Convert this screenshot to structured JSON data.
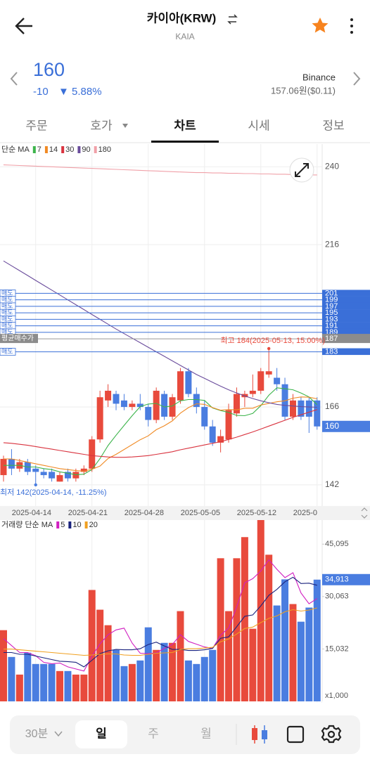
{
  "header": {
    "title": "카이아(KRW)",
    "subtitle": "KAIA"
  },
  "quote": {
    "price": "160",
    "change": "-10",
    "change_rate": "▼ 5.88%",
    "exchange": "Binance",
    "exchange_price": "157.06원($0.11)"
  },
  "tabs": [
    "주문",
    "호가",
    "차트",
    "시세",
    "정보"
  ],
  "toolbar": {
    "interval": "30분",
    "periods": [
      "일",
      "주",
      "월"
    ]
  },
  "chart_data": [
    {
      "type": "candlestick",
      "legend_label": "단순 MA",
      "categories": [
        null,
        null,
        null,
        null,
        "2025-04-14",
        null,
        null,
        null,
        null,
        null,
        null,
        "2025-04-21",
        null,
        null,
        null,
        null,
        null,
        null,
        "2025-04-28",
        null,
        null,
        null,
        null,
        null,
        null,
        "2025-05-05",
        null,
        null,
        null,
        null,
        null,
        null,
        "2025-05-12",
        null,
        null,
        null,
        null,
        null,
        null,
        "2025-0"
      ],
      "open": [
        145,
        150,
        147,
        149,
        147,
        146,
        146,
        143,
        146,
        144,
        146,
        147,
        156,
        168,
        170,
        168,
        166,
        167,
        166,
        162,
        170,
        163,
        168,
        177,
        170,
        166,
        160,
        155,
        156,
        164,
        169,
        170,
        171,
        176,
        175,
        173,
        163,
        168,
        168,
        168
      ],
      "high": [
        151,
        153,
        150,
        150,
        148,
        147,
        147,
        146,
        147,
        147,
        148,
        157,
        171,
        173,
        171,
        170,
        168,
        170,
        167,
        172,
        171,
        170,
        178,
        178,
        172,
        168,
        162,
        159,
        167,
        172,
        171,
        176,
        178,
        184,
        178,
        175,
        170,
        169,
        169,
        169
      ],
      "low": [
        143,
        145,
        146,
        145,
        142,
        144,
        143,
        143,
        143,
        143,
        145,
        146,
        155,
        166,
        165,
        165,
        165,
        165,
        160,
        161,
        162,
        162,
        167,
        169,
        164,
        159,
        154,
        152,
        155,
        163,
        166,
        169,
        170,
        175,
        171,
        162,
        162,
        162,
        158,
        159
      ],
      "close": [
        150,
        147,
        149,
        146,
        146,
        145,
        144,
        145,
        144,
        146,
        147,
        156,
        169,
        171,
        167,
        166,
        167,
        166,
        162,
        171,
        163,
        169,
        177,
        170,
        166,
        160,
        155,
        157,
        165,
        170,
        170,
        171,
        177,
        177,
        173,
        163,
        168,
        163,
        163,
        160
      ],
      "up_color": "#e84a3c",
      "down_color": "#4a7de0",
      "series": [
        {
          "name": "7",
          "color": "#3cb44b",
          "values": [
            148,
            148,
            148,
            147.5,
            147.5,
            147,
            146.7,
            146,
            145.6,
            145.1,
            145.3,
            146.7,
            150.1,
            154.1,
            157.3,
            160.3,
            163.3,
            166.1,
            166.9,
            167.1,
            166,
            166.3,
            167.9,
            168.3,
            168.3,
            168,
            165.7,
            164.9,
            164.3,
            163.4,
            163.3,
            164,
            166.4,
            169.6,
            171.9,
            171.6,
            171.3,
            170.3,
            169.1,
            166.7
          ]
        },
        {
          "name": "14",
          "color": "#f08a24",
          "values": [
            150,
            150,
            149.5,
            149,
            148.5,
            148,
            147.5,
            147,
            146.7,
            146.4,
            146.2,
            146.8,
            147.8,
            150.1,
            151.4,
            152.9,
            154.4,
            155.9,
            157.1,
            159,
            160.2,
            161.7,
            164.1,
            165.8,
            167,
            166.8,
            165.8,
            165,
            165.2,
            165.1,
            165.6,
            165.6,
            166.6,
            167.1,
            167.6,
            167.9,
            168.7,
            169.1,
            169,
            168.5
          ]
        },
        {
          "name": "30",
          "color": "#d9333f",
          "values": [
            155,
            154.8,
            154.5,
            154.2,
            153.8,
            153.4,
            153,
            152.6,
            152.2,
            151.8,
            151.4,
            151,
            150.8,
            150.6,
            150.5,
            150.5,
            150.6,
            150.8,
            151,
            151.4,
            151.8,
            152.2,
            152.8,
            153.3,
            153.8,
            154.3,
            154.8,
            155.3,
            156,
            156.7,
            157.5,
            158.3,
            159.2,
            160.1,
            161,
            161.9,
            162.8,
            163.6,
            164.4,
            165.2
          ]
        },
        {
          "name": "90",
          "color": "#6a4c9c",
          "values": [
            211,
            209.5,
            208,
            206.5,
            205,
            203.5,
            202,
            200.5,
            199,
            197.5,
            196,
            194.5,
            193,
            191.5,
            190,
            188.6,
            187.2,
            185.8,
            184.4,
            183,
            181.6,
            180.2,
            178.8,
            177.4,
            176,
            174.8,
            173.6,
            172.4,
            171.3,
            170.3,
            169.4,
            168.6,
            167.9,
            167.3,
            166.8,
            166.5,
            166.3,
            166.1,
            166,
            165.9
          ]
        },
        {
          "name": "180",
          "color": "#f0a0a8",
          "values": [
            240.6,
            240.5,
            240.4,
            240.3,
            240.2,
            240.1,
            240,
            239.9,
            239.8,
            239.7,
            239.6,
            239.5,
            239.4,
            239.3,
            239.2,
            239.1,
            239,
            238.9,
            238.8,
            238.7,
            238.6,
            238.5,
            238.4,
            238.3,
            238.2,
            238.2,
            238.1,
            238.1,
            238,
            238,
            237.9,
            237.9,
            237.8,
            237.8,
            237.7,
            237.7,
            237.6,
            237.6,
            237.5,
            237.5
          ]
        }
      ],
      "ylim": [
        137,
        247
      ],
      "yticks": [
        142,
        166,
        216,
        240
      ],
      "grid": true,
      "orders": {
        "sell_label": "매도",
        "sell_prices": [
          201,
          199,
          197,
          195,
          193,
          191,
          189,
          183
        ],
        "avg_label": "평균매수가",
        "avg_price": 187
      },
      "last_price": 160,
      "annotations": {
        "high": "최고 184(2025-05-13, 15.00%)",
        "low": "최저 142(2025-04-14, -11.25%)"
      }
    },
    {
      "type": "bar",
      "legend_label": "거래량 단순 MA",
      "values": [
        20420,
        12740,
        7680,
        13950,
        10720,
        10720,
        10720,
        8700,
        8700,
        7680,
        7680,
        31950,
        26290,
        21840,
        14760,
        10110,
        10720,
        11730,
        21230,
        14760,
        16780,
        16780,
        25880,
        11730,
        10720,
        12740,
        14760,
        41050,
        25880,
        41050,
        47110,
        20830,
        52000,
        42060,
        27500,
        34990,
        27910,
        22850,
        26900,
        34913
      ],
      "up_color": "#e84a3c",
      "down_color": "#4a7de0",
      "series": [
        {
          "name": "5",
          "color": "#d11fc1",
          "values": [
            18000,
            16000,
            14000,
            14000,
            13100,
            11200,
            10800,
            11000,
            9900,
            9300,
            8700,
            13000,
            16500,
            19100,
            20500,
            21000,
            16700,
            13800,
            13700,
            13900,
            15200,
            16300,
            19100,
            17200,
            16400,
            15600,
            15200,
            19000,
            21000,
            27100,
            34000,
            35200,
            37400,
            40600,
            37900,
            35500,
            36900,
            31100,
            28000,
            29500
          ]
        },
        {
          "name": "10",
          "color": "#1a237e",
          "values": [
            14000,
            14000,
            13500,
            13500,
            13000,
            12500,
            12000,
            11500,
            11400,
            11200,
            9900,
            11800,
            13700,
            14500,
            14900,
            14800,
            14800,
            15100,
            16300,
            17000,
            15900,
            14900,
            14900,
            14600,
            14600,
            14800,
            15200,
            18100,
            18500,
            21400,
            24400,
            24800,
            27400,
            30400,
            32100,
            34300,
            35600,
            33800,
            33900,
            33300
          ]
        },
        {
          "name": "20",
          "color": "#f0a020",
          "values": [
            15000,
            15000,
            14800,
            14600,
            14400,
            14200,
            14000,
            13800,
            13600,
            13400,
            13200,
            13300,
            13500,
            13600,
            13600,
            13300,
            13200,
            13200,
            13500,
            13800,
            13900,
            14000,
            14900,
            15100,
            15100,
            15300,
            15500,
            17100,
            17900,
            19300,
            20900,
            21300,
            22600,
            23800,
            24500,
            25700,
            26300,
            25900,
            26200,
            26800
          ]
        }
      ],
      "ylim": [
        0,
        52000
      ],
      "yticks": [
        {
          "value": 15032,
          "label": "15,032"
        },
        {
          "value": 30063,
          "label": "30,063"
        },
        {
          "value": 45095,
          "label": "45,095"
        }
      ],
      "unit_label": "x1,000",
      "last_value": {
        "value": 34913,
        "label": "34,913"
      }
    }
  ]
}
